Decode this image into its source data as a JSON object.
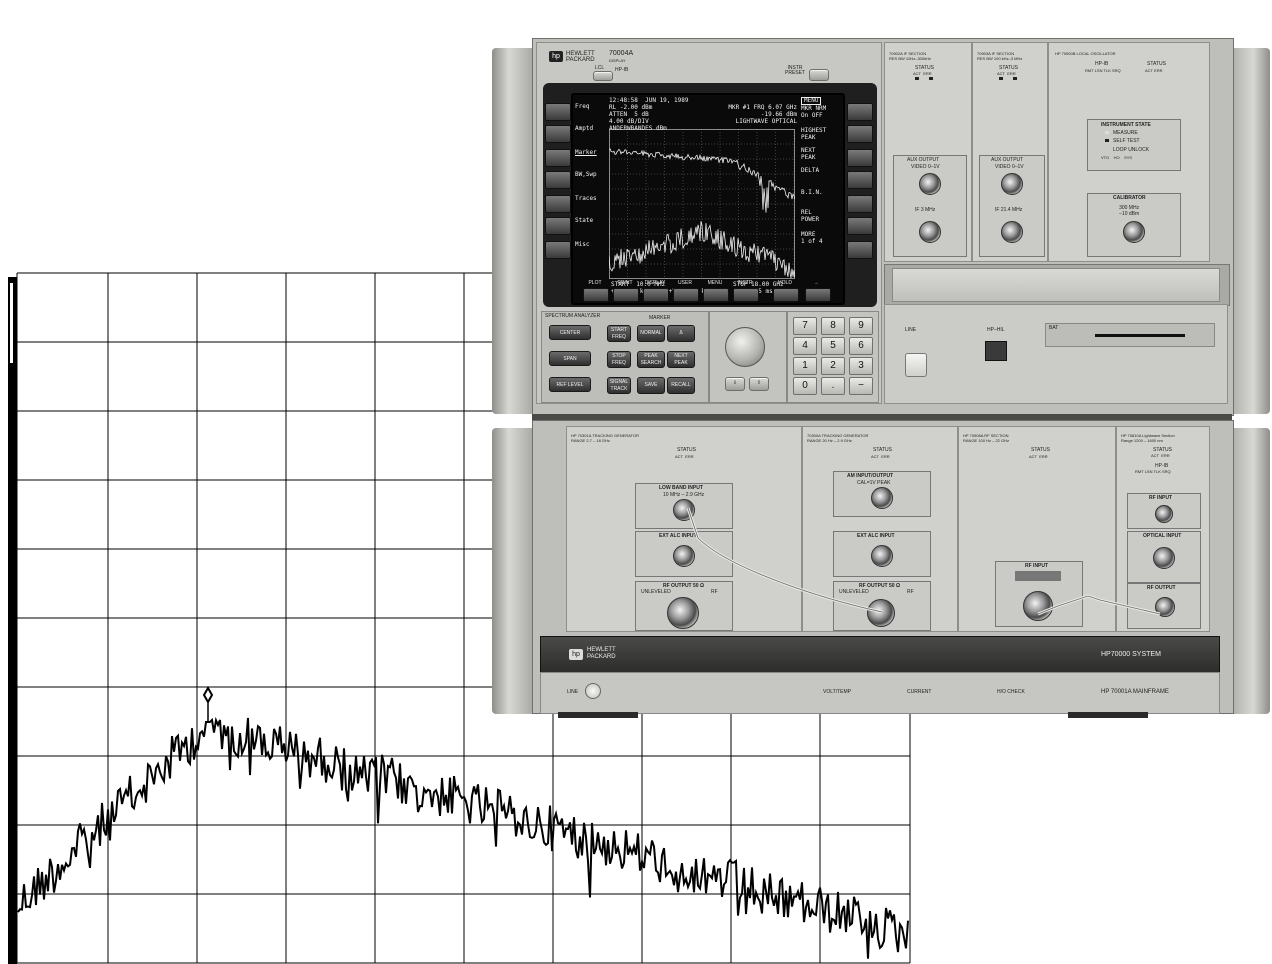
{
  "display_unit": {
    "brand": [
      "HEWLETT",
      "PACKARD"
    ],
    "model": "70004A",
    "model_sub": "DISPLAY",
    "lcl": "LCL",
    "hpib": "HP-IB",
    "instr_preset": [
      "INSTR",
      "PRESET"
    ],
    "screen": {
      "header": "12:48:58  JUN 19, 1989",
      "menu_tag": "MENU",
      "lines_left": [
        "RL -2.00 dBm",
        "ATTEN  5 dB",
        "4.00 dB/DIV",
        "ANDERWBANDES dBm"
      ],
      "lines_right": [
        "MKR #1 FRQ 6.07 GHz",
        "-19.66 dBm",
        "LIGHTWAVE OPTICAL"
      ],
      "footer_left": [
        "START  10.0 MHz",
        "+RB 100 kHz     +VB 30.0 kHz"
      ],
      "footer_right": [
        "STOP 18.00 GHz",
        "ST 249.5 msec"
      ],
      "menu_right": [
        [
          "MKR NRM",
          "On OFF"
        ],
        [
          "HIGHEST",
          "PEAK"
        ],
        [
          "NEXT",
          "PEAK"
        ],
        [
          "DELTA"
        ],
        [
          "B.I.N."
        ],
        [
          "REL",
          "POWER"
        ],
        [
          "MORE",
          "1 of 4"
        ]
      ]
    },
    "left_softkeys": [
      "Freq",
      "Amptd",
      "Marker",
      "BW,Swp",
      "Traces",
      "State",
      "Misc"
    ],
    "bottom_softkeys": [
      "PLOT",
      "PRINT",
      "DISPLAY",
      "USER",
      "MENU",
      "INSTR",
      "HOLD",
      "←"
    ],
    "spectrum_analyzer_title": "SPECTRUM ANALYZER",
    "marker_title": "MARKER",
    "sa_buttons": [
      "CENTER",
      "SPAN",
      "REF LEVEL"
    ],
    "mid_buttons": [
      [
        "START",
        "FREQ"
      ],
      [
        "STOP",
        "FREQ"
      ],
      [
        "SIGNAL",
        "TRACK"
      ]
    ],
    "marker_buttons": [
      [
        "NORMAL"
      ],
      [
        "Δ"
      ],
      [
        "PEAK",
        "SEARCH"
      ],
      [
        "NEXT",
        "PEAK"
      ],
      [
        "SAVE"
      ],
      [
        "RECALL"
      ]
    ],
    "keypad": [
      "7",
      "8",
      "9",
      "4",
      "5",
      "6",
      "1",
      "2",
      "3",
      "0",
      ".",
      "−"
    ]
  },
  "upper_modules": {
    "if1": {
      "title": "70902A IF SECTION",
      "sub": "RES BW 10Hz–300kHz",
      "status": "STATUS",
      "leds": [
        "ACT",
        "ERR"
      ],
      "aux": "AUX OUTPUT",
      "video": "VIDEO 0–1V",
      "if": "IF 3 MHz"
    },
    "if2": {
      "title": "70903A IF SECTION",
      "sub": "RES BW 100 kHz–3 MHz",
      "status": "STATUS",
      "leds": [
        "ACT",
        "ERR"
      ],
      "aux": "AUX OUTPUT",
      "video": "VIDEO 0–1V",
      "if": "IF 21.4 MHz"
    },
    "lo": {
      "title": "HP 70900B LOCAL OSCILLATOR",
      "hpib": "HP-IB",
      "status": "STATUS",
      "hpib_leds": [
        "RMT",
        "LSN",
        "TLK",
        "SRQ"
      ],
      "status_leds": [
        "ACT",
        "ERR"
      ],
      "instrument_state": "INSTRUMENT STATE",
      "measure": "MEASURE",
      "self_test": "SELF TEST",
      "loop_unlock": "LOOP UNLOCK",
      "loop_leds": [
        "VTO",
        "HO",
        "SYS"
      ],
      "calibrator": "CALIBRATOR",
      "cal_value": [
        "300 MHz",
        "−10 dBm"
      ]
    },
    "line": "LINE",
    "hp_hil": "HP–HIL",
    "bat": "BAT"
  },
  "lower_modules": {
    "tg1": {
      "title": "HP 70301A TRACKING GENERATOR",
      "sub": "RANGE 2.7 – 18 GHz",
      "status": "STATUS",
      "leds": [
        "ACT",
        "ERR"
      ],
      "low_band": "LOW BAND INPUT",
      "low_band_range": "10 MHz – 2.9 GHz",
      "ext_alc": "EXT ALC INPUT",
      "rf_output": "RF OUTPUT 50 Ω",
      "unleveled": "UNLEVELED",
      "rf": "RF"
    },
    "tg2": {
      "title": "70300A TRACKING GENERATOR",
      "sub": "RANGE 20 Hz – 2.9 GHz",
      "status": "STATUS",
      "leds": [
        "ACT",
        "ERR"
      ],
      "am": "AM INPUT/OUTPUT",
      "am_sub": "CAL=1V PEAK",
      "ext_alc": "EXT ALC INPUT",
      "rf_output": "RF OUTPUT 50 Ω",
      "unleveled": "UNLEVELED",
      "rf": "RF"
    },
    "rf": {
      "title": "HP 70908A RF SECTION",
      "sub": "RANGE 100 Hz – 22 GHz",
      "status": "STATUS",
      "leds": [
        "ACT",
        "ERR"
      ],
      "rf_input": "RF INPUT"
    },
    "lw": {
      "title": "HP 70810A Lightwave Section",
      "sub": "Range 1200 – 1600 nm",
      "status": "STATUS",
      "leds": [
        "ACT",
        "ERR"
      ],
      "hpib": "HP-IB",
      "hpib_leds": [
        "RMT",
        "LSN",
        "TLK",
        "SRQ"
      ],
      "rf_input": "RF INPUT",
      "optical_input": "OPTICAL INPUT",
      "rf_output": "RF OUTPUT"
    },
    "brand": [
      "HEWLETT",
      "PACKARD"
    ],
    "system": "HP70000 SYSTEM",
    "mainframe": "HP 70001A MAINFRAME",
    "line": "LINE",
    "volt_temp": "VOLT/TEMP",
    "current": "CURRENT",
    "ho_check": "H/O CHECK"
  },
  "colors": {
    "case": "#c9c9c5",
    "screen": "#0a0a0a",
    "trace": "#000000"
  }
}
